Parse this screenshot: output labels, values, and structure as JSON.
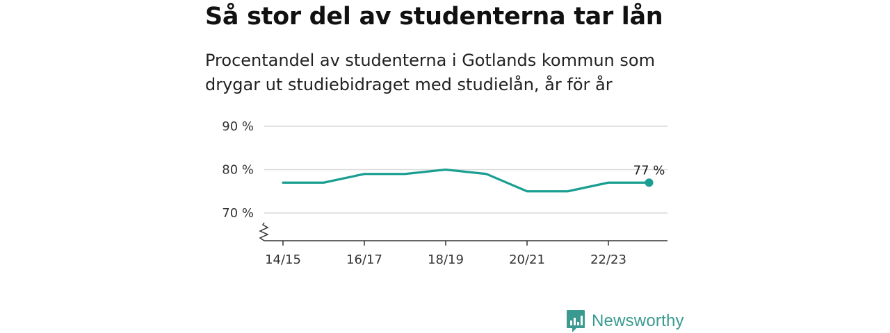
{
  "title": "Så stor del av studenterna tar lån",
  "subtitle": "Procentandel av studenterna i Gotlands kommun som drygar ut studiebidraget med studielån, år för år",
  "brand": {
    "name": "Newsworthy",
    "icon": "bar-chart-logo-icon",
    "color": "#3a9a90"
  },
  "colors": {
    "line": "#1a9e91",
    "grid": "#d9d9d9",
    "axis": "#333333"
  },
  "chart_data": {
    "type": "line",
    "title": "",
    "xlabel": "",
    "ylabel": "",
    "x": [
      "14/15",
      "15/16",
      "16/17",
      "17/18",
      "18/19",
      "19/20",
      "20/21",
      "21/22",
      "22/23",
      "23/24"
    ],
    "x_tick_labels": [
      "14/15",
      "16/17",
      "18/19",
      "20/21",
      "22/23"
    ],
    "series": [
      {
        "values": [
          77,
          77,
          79,
          79,
          80,
          79,
          75,
          75,
          77,
          77
        ]
      }
    ],
    "y_ticks": [
      70,
      80,
      90
    ],
    "y_tick_labels": [
      "70 %",
      "80 %",
      "90 %"
    ],
    "ylim": [
      63.6,
      90
    ],
    "y_axis_break": true,
    "grid": true,
    "end_label": "77 %"
  }
}
